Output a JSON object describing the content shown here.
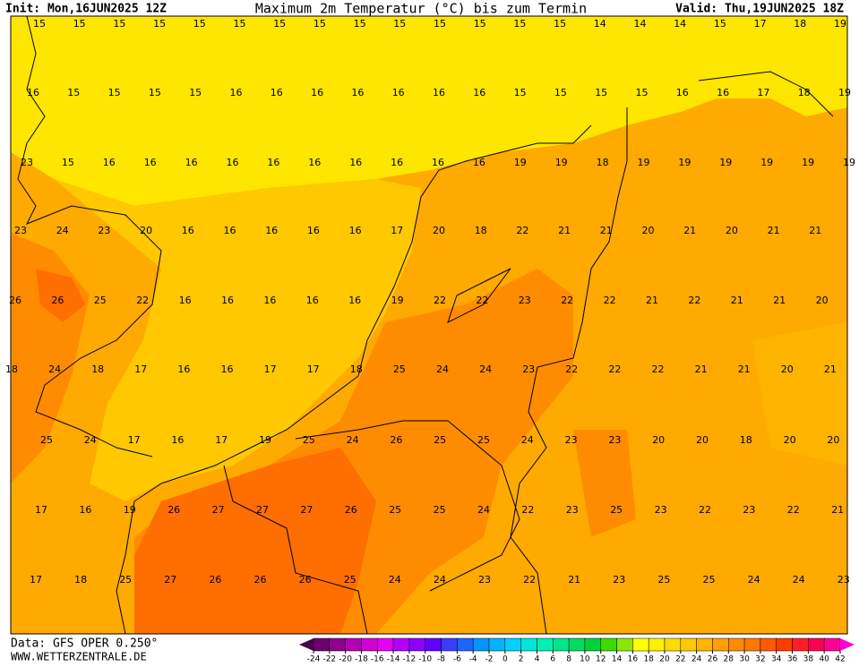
{
  "header": {
    "init": "Init: Mon,16JUN2025 12Z",
    "title": "Maximum 2m Temperatur (°C) bis zum Termin",
    "valid": "Valid: Thu,19JUN2025 18Z"
  },
  "footer": {
    "data": "Data: GFS OPER 0.250°",
    "site": "WWW.WETTERZENTRALE.DE"
  },
  "map": {
    "rows": [
      [
        15,
        15,
        15,
        15,
        15,
        15,
        15,
        15,
        15,
        15,
        15,
        15,
        15,
        15,
        14,
        14,
        14,
        15,
        17,
        18,
        19
      ],
      [
        16,
        15,
        15,
        15,
        15,
        16,
        16,
        16,
        16,
        16,
        16,
        16,
        15,
        15,
        15,
        15,
        16,
        16,
        17,
        18,
        19
      ],
      [
        23,
        15,
        16,
        16,
        16,
        16,
        16,
        16,
        16,
        16,
        16,
        16,
        19,
        19,
        18,
        19,
        19,
        19,
        19,
        19,
        19
      ],
      [
        23,
        24,
        23,
        20,
        16,
        16,
        16,
        16,
        16,
        17,
        20,
        18,
        22,
        21,
        21,
        20,
        21,
        20,
        21,
        21
      ],
      [
        26,
        26,
        25,
        22,
        16,
        16,
        16,
        16,
        16,
        19,
        22,
        22,
        23,
        22,
        22,
        21,
        22,
        21,
        21,
        20
      ],
      [
        18,
        24,
        18,
        17,
        16,
        16,
        17,
        17,
        18,
        25,
        24,
        24,
        23,
        22,
        22,
        22,
        21,
        21,
        20,
        21
      ],
      [
        25,
        24,
        17,
        16,
        17,
        19,
        25,
        24,
        26,
        25,
        25,
        24,
        23,
        23,
        20,
        20,
        18,
        20,
        20
      ],
      [
        17,
        16,
        19,
        26,
        27,
        27,
        27,
        26,
        25,
        25,
        24,
        22,
        23,
        25,
        23,
        22,
        23,
        22,
        21
      ],
      [
        17,
        18,
        25,
        27,
        26,
        26,
        26,
        25,
        24,
        24,
        23,
        22,
        21,
        23,
        25,
        25,
        24,
        24,
        23
      ]
    ]
  },
  "colorbar": {
    "ticks": [
      -24,
      -22,
      -20,
      -18,
      -16,
      -14,
      -12,
      -10,
      -8,
      -6,
      -4,
      -2,
      0,
      2,
      4,
      6,
      8,
      10,
      12,
      14,
      16,
      18,
      20,
      22,
      24,
      26,
      28,
      30,
      32,
      34,
      36,
      38,
      40,
      42
    ],
    "colors": [
      "#4b004b",
      "#6e006e",
      "#91008c",
      "#b400b4",
      "#d200d2",
      "#e600f0",
      "#b400ff",
      "#8c00ff",
      "#6400ff",
      "#3c3cff",
      "#1e64ff",
      "#0096ff",
      "#00b4ff",
      "#00d2ff",
      "#00e6dc",
      "#00f0b4",
      "#00e68c",
      "#00dc64",
      "#00d23c",
      "#3cdc00",
      "#8ce600",
      "#ffff00",
      "#fff000",
      "#ffdc00",
      "#ffc800",
      "#ffb400",
      "#ffa000",
      "#ff8c00",
      "#ff7800",
      "#ff5a00",
      "#ff3c00",
      "#ff1e28",
      "#ff0050",
      "#ff0096",
      "#ff00d2"
    ]
  }
}
